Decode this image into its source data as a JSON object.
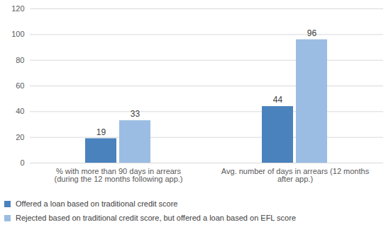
{
  "chart_data": {
    "type": "bar",
    "categories": [
      "% with more than 90 days in arrears\n(during the 12 months following app.)",
      "Avg. number of days in arrears (12 months\nafter app.)"
    ],
    "series": [
      {
        "name": "Offered a loan based on traditional credit score",
        "color": "#4a82bd",
        "values": [
          19,
          44
        ]
      },
      {
        "name": "Rejected based on traditional credit score, but offered a loan based on EFL score",
        "color": "#9bbde3",
        "values": [
          33,
          96
        ]
      }
    ],
    "ylim": [
      0,
      120
    ],
    "yticks": [
      0,
      20,
      40,
      60,
      80,
      100,
      120
    ],
    "grid": true,
    "data_labels": true,
    "legend": "bottom"
  }
}
